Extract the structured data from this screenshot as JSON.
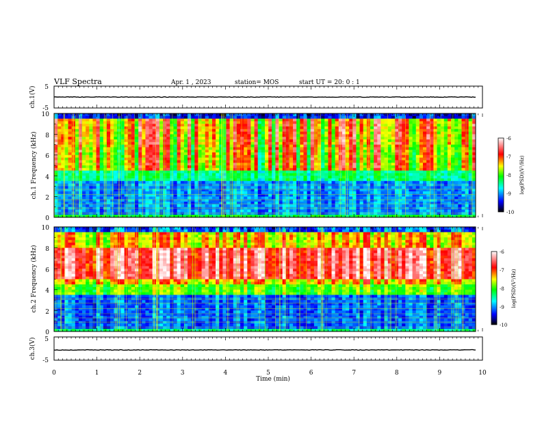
{
  "header": {
    "title": "VLF Spectra",
    "date": "Apr. 1 , 2023",
    "station": "station= MOS",
    "start": "start UT = 20: 0 : 1"
  },
  "chart_data": [
    {
      "type": "line",
      "name": "ch1-waveform",
      "ylabel": "ch.1(V)",
      "ylim": [
        -5,
        5
      ],
      "yticks": [
        "5",
        "-5"
      ],
      "xlim": [
        0,
        10
      ]
    },
    {
      "type": "heatmap",
      "name": "ch1-spectrogram",
      "ylabel": "ch.1 Frequency (kHz)",
      "ylim": [
        0,
        10
      ],
      "yticks": [
        "10",
        "8",
        "6",
        "4",
        "2",
        "0"
      ],
      "xlim": [
        0,
        10
      ],
      "colorbar": {
        "label": "log(PSD)(V²/Hz)",
        "range": [
          -10,
          -6
        ],
        "ticks": [
          "-6",
          "-7",
          "-8",
          "-9",
          "-10"
        ]
      }
    },
    {
      "type": "heatmap",
      "name": "ch2-spectrogram",
      "ylabel": "ch.2 Frequency (kHz)",
      "ylim": [
        0,
        10
      ],
      "yticks": [
        "10",
        "8",
        "6",
        "4",
        "2",
        "0"
      ],
      "xlim": [
        0,
        10
      ],
      "colorbar": {
        "label": "log(PSD)(V²/Hz)",
        "range": [
          -10,
          -6
        ],
        "ticks": [
          "-6",
          "-7",
          "-8",
          "-9",
          "-10"
        ]
      }
    },
    {
      "type": "line",
      "name": "ch3-waveform",
      "ylabel": "ch.3(V)",
      "ylim": [
        -5,
        5
      ],
      "yticks": [
        "5",
        "-5"
      ],
      "xlim": [
        0,
        10
      ]
    }
  ],
  "xaxis": {
    "label": "Time (min)",
    "ticks": [
      "0",
      "1",
      "2",
      "3",
      "4",
      "5",
      "6",
      "7",
      "8",
      "9",
      "10"
    ],
    "range": [
      0,
      10
    ]
  },
  "colors": {
    "colormap": [
      "#000000",
      "#0000ff",
      "#00ffff",
      "#00ff00",
      "#ffff00",
      "#ff0000",
      "#ffffff"
    ]
  }
}
